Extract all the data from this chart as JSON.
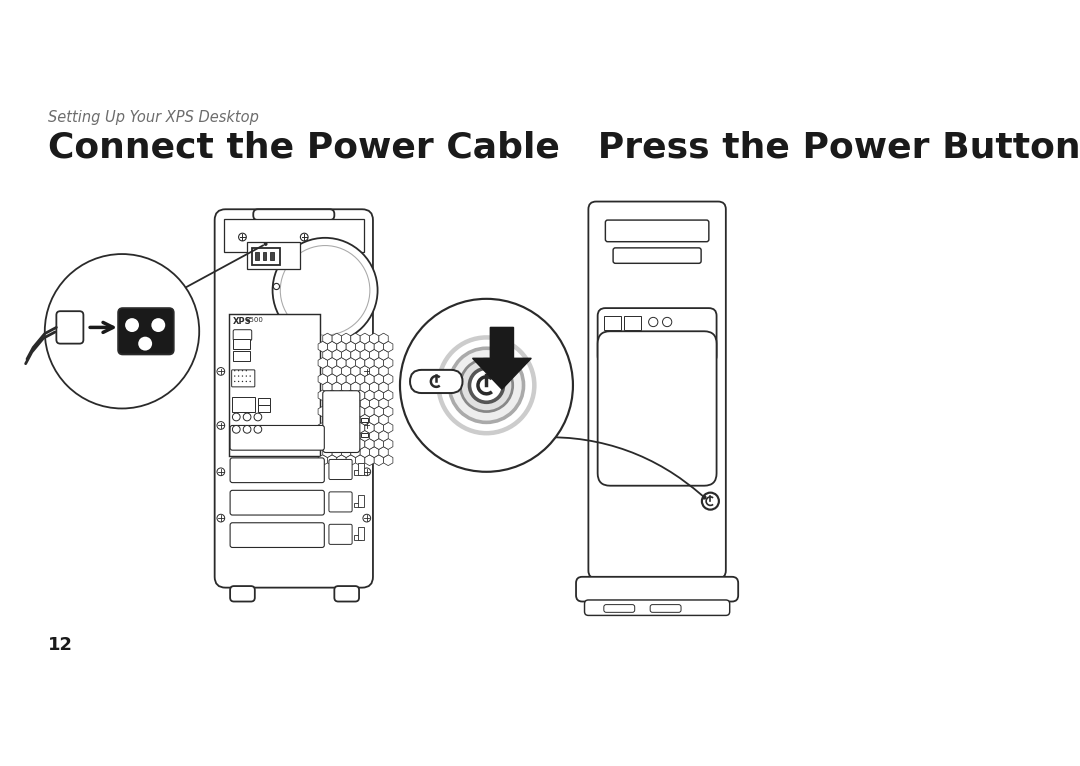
{
  "bg_color": "#ffffff",
  "subtitle": "Setting Up Your XPS Desktop",
  "subtitle_color": "#6d6d6d",
  "subtitle_fontsize": 10.5,
  "title1": "Connect the Power Cable",
  "title2": "Press the Power Button",
  "title_color": "#1a1a1a",
  "title_fontsize": 26,
  "page_number": "12",
  "page_number_fontsize": 13,
  "line_color": "#2a2a2a",
  "line_width": 1.3
}
